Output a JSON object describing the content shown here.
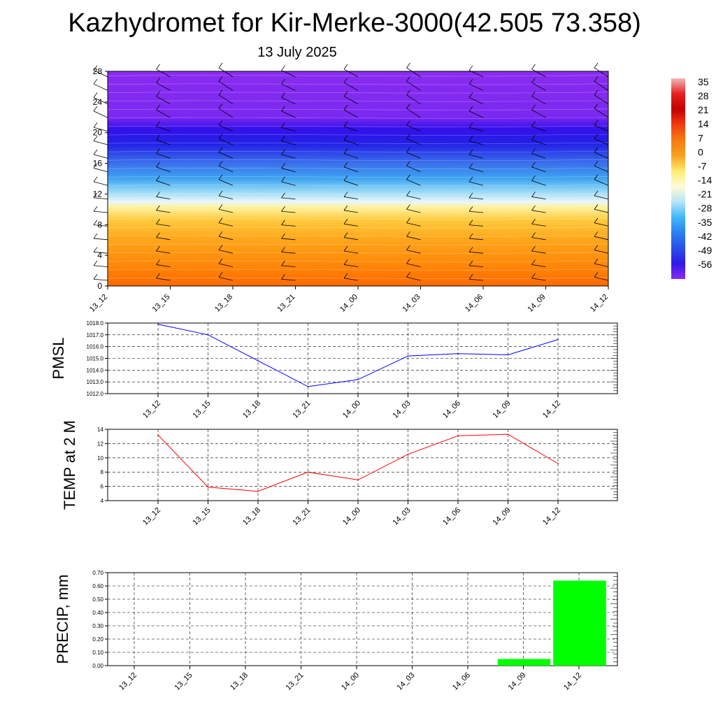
{
  "title": "Kazhydromet for Kir-Merke-3000(42.505 73.358)",
  "subtitle": "13 July 2025",
  "chart_data": [
    {
      "type": "heatmap",
      "name": "temperature-height-section",
      "x_tick_labels": [
        "13_12",
        "13_15",
        "13_18",
        "13_21",
        "14_00",
        "14_03",
        "14_06",
        "14_09",
        "14_12"
      ],
      "y_tick_labels": [
        "0",
        "4",
        "8",
        "12",
        "16",
        "20",
        "24",
        "28"
      ],
      "ylim": [
        0,
        28
      ],
      "colorbar": {
        "labels": [
          "35",
          "28",
          "21",
          "14",
          "7",
          "0",
          "-7",
          "-14",
          "-21",
          "-28",
          "-35",
          "-42",
          "-49",
          "-56"
        ],
        "levels": [
          35,
          28,
          21,
          14,
          7,
          0,
          -7,
          -14,
          -21,
          -28,
          -35,
          -42,
          -49,
          -56
        ],
        "colors": [
          "#f2b8b8",
          "#e82020",
          "#c40000",
          "#f03c10",
          "#f57a10",
          "#f7a020",
          "#ffeb70",
          "#fffcd8",
          "#b8e4f8",
          "#40b8f8",
          "#2c80f0",
          "#2850e8",
          "#3018e8",
          "#8a2cf0"
        ]
      },
      "wind_barbs": "shown",
      "y_bands": [
        {
          "y": 0,
          "color": "#ff6a00"
        },
        {
          "y": 3,
          "color": "#ff8a0a"
        },
        {
          "y": 6,
          "color": "#ffa51a"
        },
        {
          "y": 8.5,
          "color": "#ffc83a"
        },
        {
          "y": 10.3,
          "color": "#fff2a0"
        },
        {
          "y": 11,
          "color": "#e8f6fb"
        },
        {
          "y": 12.5,
          "color": "#8ed4f6"
        },
        {
          "y": 14,
          "color": "#3ea4f0"
        },
        {
          "y": 16,
          "color": "#3a70ec"
        },
        {
          "y": 18.5,
          "color": "#2222e6"
        },
        {
          "y": 20.5,
          "color": "#3410ea"
        },
        {
          "y": 22,
          "color": "#7a28f0"
        },
        {
          "y": 28,
          "color": "#8a2cf0"
        }
      ]
    },
    {
      "type": "line",
      "ylabel": "PMSL",
      "categories": [
        "13_12",
        "13_15",
        "13_18",
        "13_21",
        "14_00",
        "14_03",
        "14_06",
        "14_09",
        "14_12"
      ],
      "series": [
        {
          "values": [
            1017.9,
            1017.0,
            1014.8,
            1012.6,
            1013.2,
            1015.2,
            1015.4,
            1015.3,
            1016.6
          ],
          "color": "#0000ff"
        }
      ],
      "ylim": [
        1012.0,
        1018.0
      ],
      "y_tick_labels": [
        "1012.0",
        "1013.0",
        "1014.0",
        "1015.0",
        "1016.0",
        "1017.0",
        "1018.0"
      ],
      "grid": true
    },
    {
      "type": "line",
      "ylabel": "TEMP at 2 M",
      "categories": [
        "13_12",
        "13_15",
        "13_18",
        "13_21",
        "14_00",
        "14_03",
        "14_06",
        "14_09",
        "14_12"
      ],
      "series": [
        {
          "values": [
            13.2,
            5.9,
            5.3,
            8.0,
            6.9,
            10.5,
            13.1,
            13.3,
            9.2
          ],
          "color": "#ff0000"
        }
      ],
      "ylim": [
        4,
        14
      ],
      "y_tick_labels": [
        "4",
        "6",
        "8",
        "10",
        "12",
        "14"
      ],
      "grid": true
    },
    {
      "type": "bar",
      "ylabel": "PRECIP, mm",
      "categories": [
        "13_12",
        "13_15",
        "13_18",
        "13_21",
        "14_00",
        "14_03",
        "14_06",
        "14_09",
        "14_12"
      ],
      "values": [
        0,
        0,
        0,
        0,
        0,
        0,
        0,
        0.05,
        0.64
      ],
      "color": "#00ff00",
      "ylim": [
        0,
        0.7
      ],
      "y_tick_labels": [
        "0.00",
        "0.10",
        "0.20",
        "0.30",
        "0.40",
        "0.50",
        "0.60",
        "0.70"
      ],
      "grid": true
    }
  ]
}
